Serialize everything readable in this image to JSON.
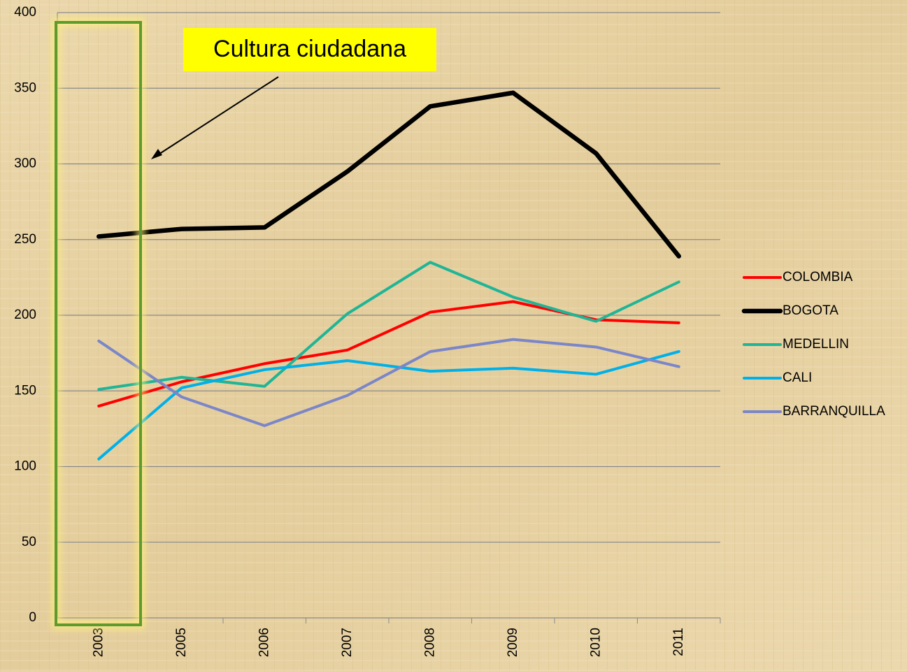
{
  "chart_data": {
    "type": "line",
    "annotation": "Cultura ciudadana",
    "categories": [
      "2003",
      "2005",
      "2006",
      "2007",
      "2008",
      "2009",
      "2010",
      "2011"
    ],
    "series": [
      {
        "name": "COLOMBIA",
        "color": "#ff0000",
        "width": 4,
        "values": [
          140,
          156,
          168,
          177,
          202,
          209,
          197,
          195
        ]
      },
      {
        "name": "BOGOTA",
        "color": "#000000",
        "width": 6.5,
        "values": [
          252,
          257,
          258,
          295,
          338,
          347,
          307,
          239
        ]
      },
      {
        "name": "MEDELLIN",
        "color": "#1fb596",
        "width": 4,
        "values": [
          151,
          159,
          153,
          201,
          235,
          212,
          196,
          222
        ]
      },
      {
        "name": "CALI",
        "color": "#00b0e8",
        "width": 4,
        "values": [
          105,
          152,
          164,
          170,
          163,
          165,
          161,
          176
        ]
      },
      {
        "name": "BARRANQUILLA",
        "color": "#7b86c8",
        "width": 4,
        "values": [
          183,
          146,
          127,
          147,
          176,
          184,
          179,
          166
        ]
      }
    ],
    "ylim": [
      0,
      400
    ],
    "yticks": [
      0,
      50,
      100,
      150,
      200,
      250,
      300,
      350,
      400
    ],
    "grid": true,
    "legend": "right"
  }
}
